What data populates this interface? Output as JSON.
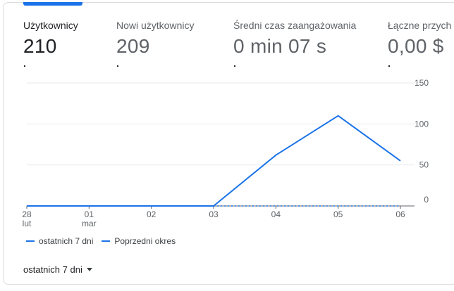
{
  "metrics": [
    {
      "label": "Użytkownicy",
      "value": "210"
    },
    {
      "label": "Nowi użytkownicy",
      "value": "209"
    },
    {
      "label": "Średni czas zaangażowania",
      "value": "0 min 07 s"
    },
    {
      "label": "Łączne przych",
      "value": "0,00 $"
    }
  ],
  "chart_data": {
    "type": "line",
    "x": [
      "28 lut",
      "01 mar",
      "02",
      "03",
      "04",
      "05",
      "06"
    ],
    "x_ticks": [
      {
        "day": "28",
        "month": "lut"
      },
      {
        "day": "01",
        "month": "mar"
      },
      {
        "day": "02",
        "month": ""
      },
      {
        "day": "03",
        "month": ""
      },
      {
        "day": "04",
        "month": ""
      },
      {
        "day": "05",
        "month": ""
      },
      {
        "day": "06",
        "month": ""
      }
    ],
    "series": [
      {
        "name": "ostatnich 7 dni",
        "style": "solid",
        "values": [
          0,
          0,
          0,
          0,
          62,
          110,
          55
        ]
      },
      {
        "name": "Poprzedni okres",
        "style": "dashed",
        "values": [
          0,
          0,
          0,
          0,
          0,
          0,
          0
        ]
      }
    ],
    "y_ticks": [
      "150",
      "100",
      "50",
      "0"
    ],
    "ylim": [
      0,
      150
    ],
    "y_axis_side": "right",
    "grid": true,
    "legend_position": "bottom-left",
    "color": "#1a73e8"
  },
  "date_range": {
    "label": "ostatnich 7 dni"
  }
}
